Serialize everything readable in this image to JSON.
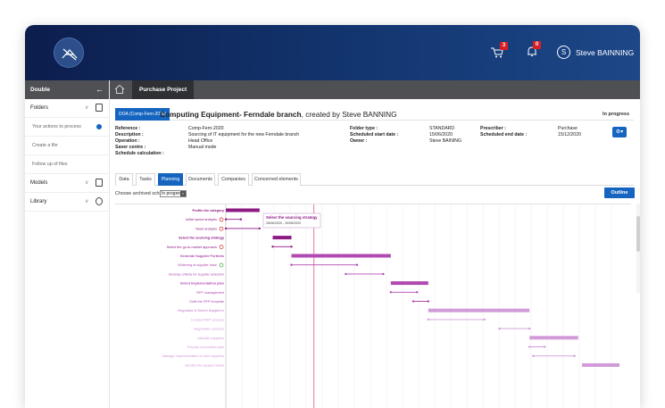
{
  "header": {
    "cart_count": "3",
    "notification_count": "0",
    "user_initial": "S",
    "user_name": "Steve BAINNING"
  },
  "sidebar": {
    "title": "Double",
    "items": [
      {
        "label": "Folders",
        "kind": "section"
      },
      {
        "label": "Your actions to process",
        "kind": "sub"
      },
      {
        "label": "Create a file",
        "kind": "sub"
      },
      {
        "label": "Follow up of files",
        "kind": "sub"
      },
      {
        "label": "Models",
        "kind": "section"
      },
      {
        "label": "Library",
        "kind": "section"
      }
    ]
  },
  "breadcrumb": {
    "tab": "Purchase Project"
  },
  "document": {
    "ref_badge": "DOA (Comp-Fern-2020)",
    "title_bold": "Computing Equipment- Ferndale branch",
    "title_rest": ", created by Steve BANNING",
    "status": "In progress"
  },
  "info_left": [
    {
      "label": "Reference :",
      "value": "Comp-Fern-2020"
    },
    {
      "label": "Description :",
      "value": "Sourcing of IT equipment for the new Ferndale branch"
    },
    {
      "label": "Operation :",
      "value": ""
    },
    {
      "label": "Saver centre :",
      "value": "Head Office"
    },
    {
      "label": "Schedule calculation :",
      "value": "Manual mode"
    }
  ],
  "info_mid": [
    {
      "label": "Folder type :",
      "value": "STANDARD"
    },
    {
      "label": "Scheduled start date :",
      "value": "15/06/2020"
    },
    {
      "label": "Owner :",
      "value": "Steve BAINING"
    }
  ],
  "info_right": [
    {
      "label": "Prescriber :",
      "value": "Purchase"
    },
    {
      "label": "Scheduled end date :",
      "value": "15/12/2020"
    }
  ],
  "tabs": [
    "Data",
    "Tasks",
    "Planning",
    "Documents",
    "Companies",
    "Concerned elements"
  ],
  "active_tab": "Planning",
  "schedule": {
    "label": "Choose archived schedule:",
    "value": "In progress",
    "outline_label": "Outline"
  },
  "tooltip": {
    "title": "Select the sourcing strategy",
    "dates": "28/06/2020 - 30/08/2020"
  },
  "gantt_tasks": [
    {
      "name": "Profile the category",
      "bold": true,
      "shade": "dark",
      "start": 0,
      "end": 18,
      "type": "bar"
    },
    {
      "name": "Initial spend analysis",
      "bold": false,
      "shade": "dark",
      "start": 0,
      "end": 8,
      "type": "line",
      "icon": true
    },
    {
      "name": "Need analysis",
      "bold": false,
      "shade": "dark",
      "start": 0,
      "end": 18,
      "type": "line",
      "icon": true
    },
    {
      "name": "Select the sourcing strategy",
      "bold": true,
      "shade": "dark",
      "start": 25,
      "end": 35,
      "type": "bar"
    },
    {
      "name": "Select the go-to-market approach",
      "bold": false,
      "shade": "dark",
      "start": 25,
      "end": 35,
      "type": "line",
      "icon": true
    },
    {
      "name": "Generate Supplier Portfolio",
      "bold": true,
      "shade": "mid",
      "start": 35,
      "end": 88,
      "type": "bar"
    },
    {
      "name": "Widening of supplier base",
      "bold": false,
      "shade": "mid",
      "start": 35,
      "end": 70,
      "type": "line",
      "icon": true
    },
    {
      "name": "Develop criteria for supplier selection",
      "bold": false,
      "shade": "mid",
      "start": 64,
      "end": 84,
      "type": "line"
    },
    {
      "name": "Select Implementation plan",
      "bold": true,
      "shade": "mid",
      "start": 88,
      "end": 108,
      "type": "bar"
    },
    {
      "name": "RFP management",
      "bold": false,
      "shade": "mid",
      "start": 88,
      "end": 102,
      "type": "line"
    },
    {
      "name": "Draft the RFP template",
      "bold": false,
      "shade": "mid",
      "start": 100,
      "end": 108,
      "type": "line"
    },
    {
      "name": "Negotiate & Select Suppliers",
      "bold": true,
      "shade": "light",
      "start": 108,
      "end": 162,
      "type": "bar"
    },
    {
      "name": "Conduct RFP process",
      "bold": false,
      "shade": "light",
      "start": 108,
      "end": 138,
      "type": "line"
    },
    {
      "name": "Negotiation process",
      "bold": false,
      "shade": "light",
      "start": 146,
      "end": 162,
      "type": "line"
    },
    {
      "name": "Allocate suppliers",
      "bold": false,
      "shade": "light",
      "start": 162,
      "end": 188,
      "type": "bar"
    },
    {
      "name": "Prepare a transition plan",
      "bold": false,
      "shade": "light",
      "start": 162,
      "end": 170,
      "type": "line"
    },
    {
      "name": "Manage Implementation of new suppliers",
      "bold": false,
      "shade": "light",
      "start": 164,
      "end": 186,
      "type": "line"
    },
    {
      "name": "Monitor the supply market",
      "bold": false,
      "shade": "light",
      "start": 190,
      "end": 210,
      "type": "bar"
    }
  ],
  "colors": {
    "accent": "#1565c0",
    "bar_dark": "#8e1a84",
    "bar_mid": "#b04ab0",
    "bar_light": "#d29ad8",
    "today_line": "#e05a7a"
  }
}
